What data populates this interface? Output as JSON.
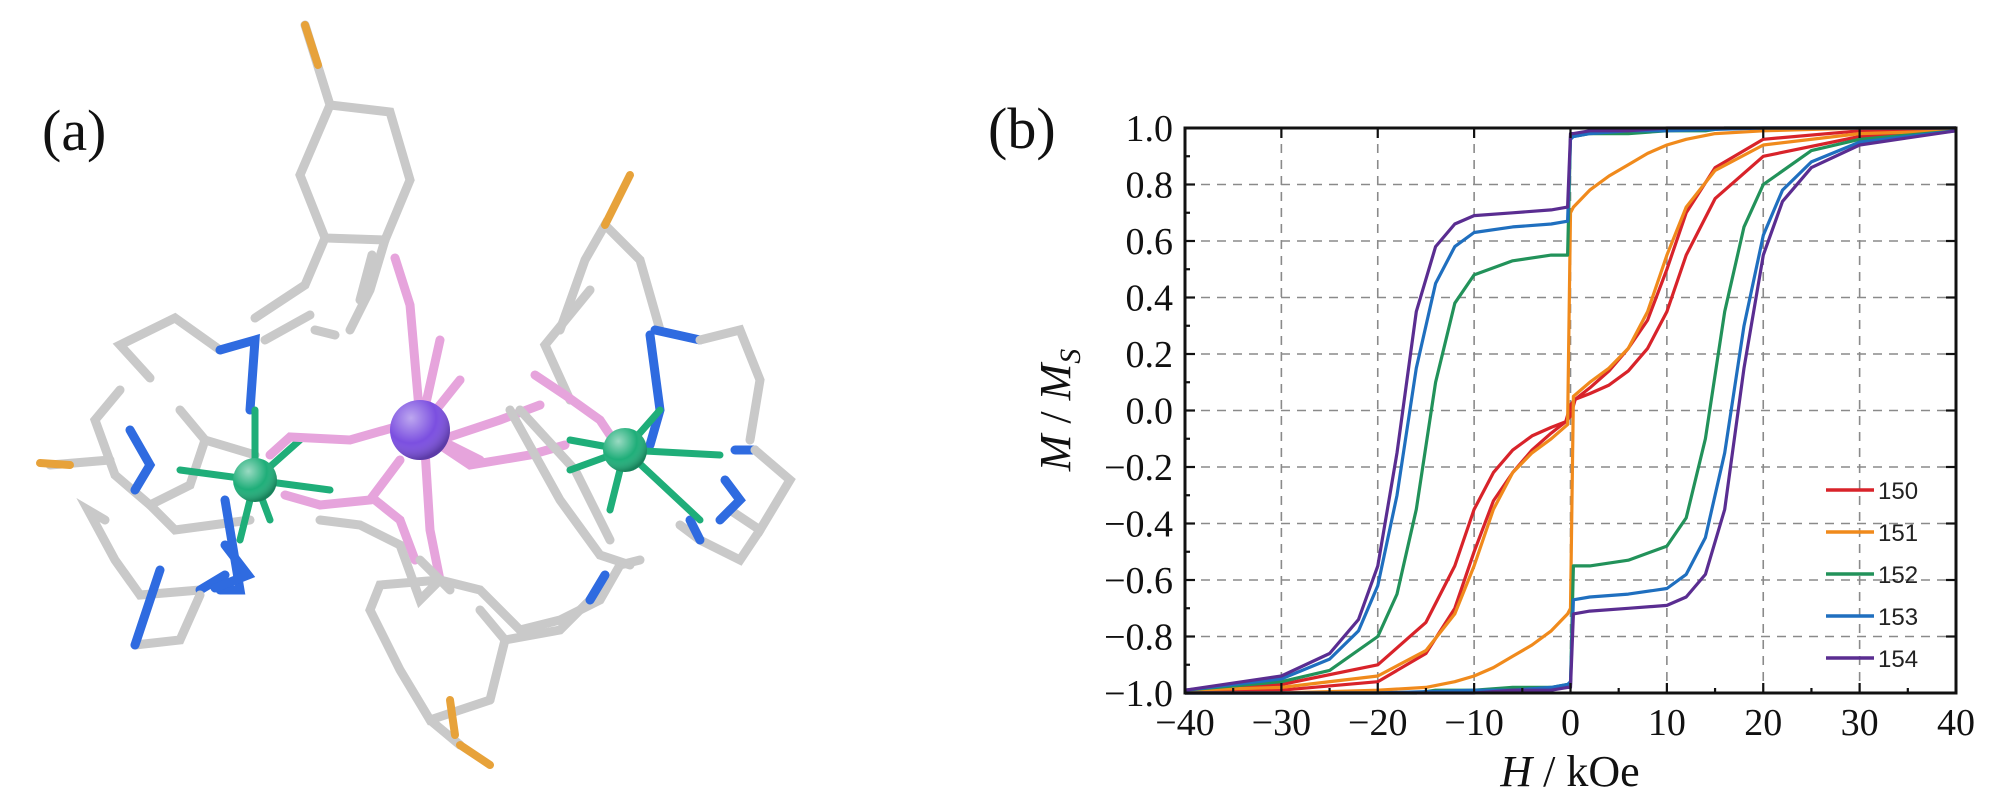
{
  "panels": {
    "a_label": "(a)",
    "b_label": "(b)"
  },
  "molecule": {
    "atom_colors": {
      "carbon": "#c9c9c9",
      "nitrogen": "#2f6be0",
      "oxygen": "#e6a4dc",
      "fluorine": "#e7a23a",
      "zinc": "#1fae79",
      "lanthanide": "#7b4fe0"
    }
  },
  "chart_data": {
    "type": "line",
    "title": "",
    "xlabel_italic": "H",
    "xlabel_rest": " / kOe",
    "ylabel_italic": "M",
    "ylabel_mid": " / ",
    "ylabel_italic2": "M",
    "ylabel_sub": "S",
    "xlim": [
      -40,
      40
    ],
    "ylim": [
      -1.0,
      1.0
    ],
    "xticks": [
      -40,
      -30,
      -20,
      -10,
      0,
      10,
      20,
      30,
      40
    ],
    "xtick_labels": [
      "−40",
      "−30",
      "−20",
      "−10",
      "0",
      "10",
      "20",
      "30",
      "40"
    ],
    "yticks": [
      -1.0,
      -0.8,
      -0.6,
      -0.4,
      -0.2,
      0.0,
      0.2,
      0.4,
      0.6,
      0.8,
      1.0
    ],
    "ytick_labels": [
      "−1.0",
      "−0.8",
      "−0.6",
      "−0.4",
      "−0.2",
      "0.0",
      "0.2",
      "0.4",
      "0.6",
      "0.8",
      "1.0"
    ],
    "grid": true,
    "legend_position": "bottom-right",
    "series": [
      {
        "name": "150",
        "color": "#d8232a",
        "upper_branch": {
          "x": [
            -40,
            -30,
            -20,
            -15,
            -12,
            -10,
            -8,
            -6,
            -4,
            -2,
            -0.5,
            0,
            0.5,
            2,
            4,
            6,
            8,
            10,
            12,
            15,
            20,
            30,
            40
          ],
          "y": [
            -0.99,
            -0.97,
            -0.9,
            -0.75,
            -0.55,
            -0.35,
            -0.22,
            -0.14,
            -0.09,
            -0.06,
            -0.04,
            0.02,
            0.04,
            0.08,
            0.14,
            0.22,
            0.32,
            0.5,
            0.7,
            0.86,
            0.96,
            0.99,
            1.0
          ]
        }
      },
      {
        "name": "151",
        "color": "#f08a1c",
        "upper_branch": {
          "x": [
            -40,
            -30,
            -20,
            -15,
            -12,
            -10,
            -8,
            -6,
            -4,
            -2,
            -0.3,
            0,
            0.3,
            2,
            4,
            6,
            8,
            10,
            12,
            15,
            20,
            30,
            40
          ],
          "y": [
            -0.99,
            -0.98,
            -0.94,
            -0.85,
            -0.72,
            -0.55,
            -0.35,
            -0.22,
            -0.15,
            -0.1,
            -0.05,
            0.7,
            0.72,
            0.78,
            0.83,
            0.87,
            0.91,
            0.94,
            0.96,
            0.98,
            0.99,
            1.0,
            1.0
          ]
        }
      },
      {
        "name": "152",
        "color": "#22925a",
        "upper_branch": {
          "x": [
            -40,
            -30,
            -25,
            -20,
            -18,
            -16,
            -14,
            -12,
            -10,
            -6,
            -2,
            -0.3,
            0,
            0.3,
            2,
            6,
            10,
            12,
            14,
            16,
            18,
            20,
            25,
            30,
            40
          ],
          "y": [
            -0.99,
            -0.96,
            -0.92,
            -0.8,
            -0.65,
            -0.35,
            0.1,
            0.38,
            0.48,
            0.53,
            0.55,
            0.55,
            0.97,
            0.97,
            0.98,
            0.98,
            0.99,
            0.99,
            0.99,
            1.0,
            1.0,
            1.0,
            1.0,
            1.0,
            1.0
          ]
        }
      },
      {
        "name": "153",
        "color": "#1f6fbf",
        "upper_branch": {
          "x": [
            -40,
            -30,
            -25,
            -22,
            -20,
            -18,
            -16,
            -14,
            -12,
            -10,
            -6,
            -2,
            -0.3,
            0,
            0.3,
            2,
            6,
            10,
            20,
            30,
            40
          ],
          "y": [
            -0.99,
            -0.95,
            -0.88,
            -0.78,
            -0.62,
            -0.3,
            0.15,
            0.45,
            0.58,
            0.63,
            0.65,
            0.66,
            0.67,
            0.96,
            0.97,
            0.98,
            0.99,
            0.99,
            1.0,
            1.0,
            1.0
          ]
        }
      },
      {
        "name": "154",
        "color": "#5a2d91",
        "upper_branch": {
          "x": [
            -40,
            -30,
            -25,
            -22,
            -20,
            -18,
            -16,
            -14,
            -12,
            -10,
            -6,
            -2,
            -0.3,
            0,
            0.3,
            2,
            6,
            10,
            20,
            30,
            40
          ],
          "y": [
            -0.99,
            -0.94,
            -0.86,
            -0.74,
            -0.55,
            -0.15,
            0.35,
            0.58,
            0.66,
            0.69,
            0.7,
            0.71,
            0.72,
            0.98,
            0.98,
            0.99,
            0.99,
            1.0,
            1.0,
            1.0,
            1.0
          ]
        }
      }
    ]
  }
}
